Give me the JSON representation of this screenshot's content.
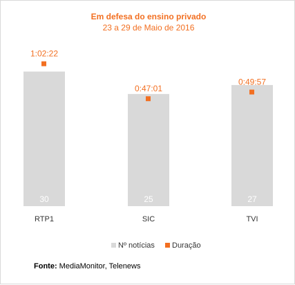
{
  "chart_data": {
    "type": "bar",
    "title": "Em defesa do ensino privado",
    "subtitle": "23 a 29 de Maio de 2016",
    "categories": [
      "RTP1",
      "SIC",
      "TVI"
    ],
    "series": [
      {
        "name": "Nº notícias",
        "type": "bar",
        "values": [
          30,
          25,
          27
        ],
        "color": "#d9d9d9"
      },
      {
        "name": "Duração",
        "type": "scatter",
        "values": [
          "1:02:22",
          "0:47:01",
          "0:49:57"
        ],
        "values_seconds": [
          3742,
          2821,
          2997
        ],
        "color": "#f26f21"
      }
    ],
    "ylim": [
      0,
      33
    ],
    "y2lim_seconds": [
      0,
      3900
    ],
    "legend_position": "bottom",
    "xlabel": "",
    "ylabel": ""
  },
  "colors": {
    "accent": "#f26f21",
    "bar": "#d9d9d9",
    "text": "#333333"
  },
  "source": {
    "label": "Fonte:",
    "text": " MediaMonitor, Telenews"
  }
}
